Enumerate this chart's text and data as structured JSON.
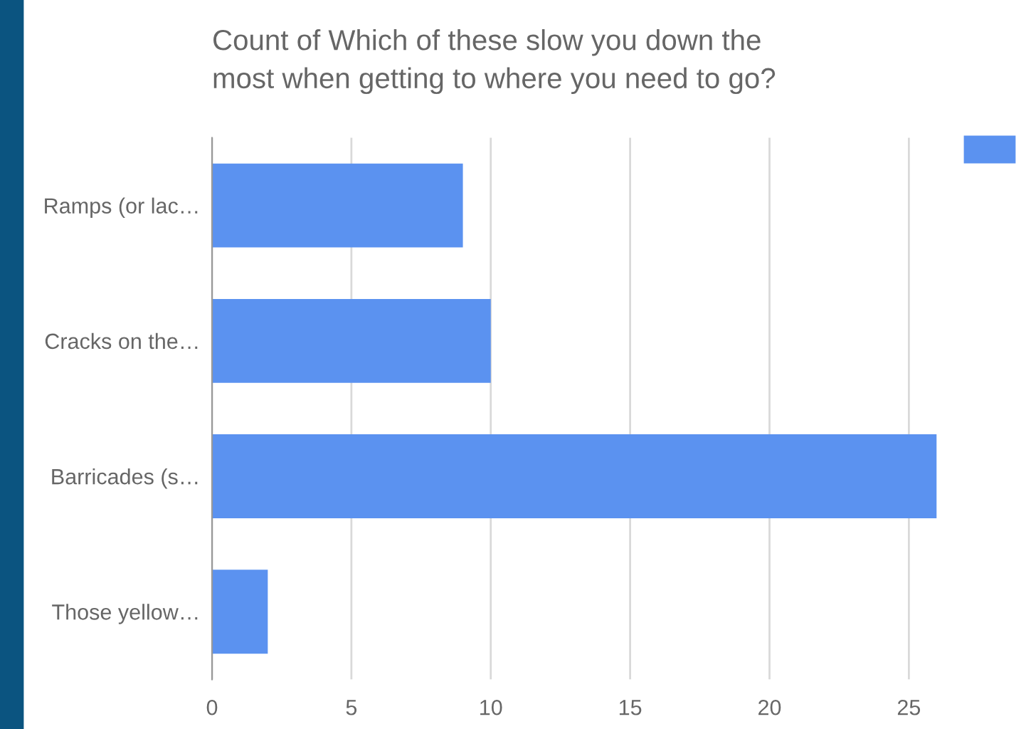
{
  "chart_data": {
    "type": "bar",
    "orientation": "horizontal",
    "title": "Count of Which of these slow you down the\nmost when getting to where you need to go?",
    "categories": [
      "Ramps (or lac…",
      "Cracks on the…",
      "Barricades (s…",
      "Those yellow…"
    ],
    "series": [
      {
        "color": "#5b92f0",
        "values": [
          9,
          10,
          26,
          2
        ]
      }
    ],
    "xlim": [
      0,
      26
    ],
    "xticks": [
      0,
      5,
      10,
      15,
      20,
      25
    ],
    "grid": "x"
  }
}
